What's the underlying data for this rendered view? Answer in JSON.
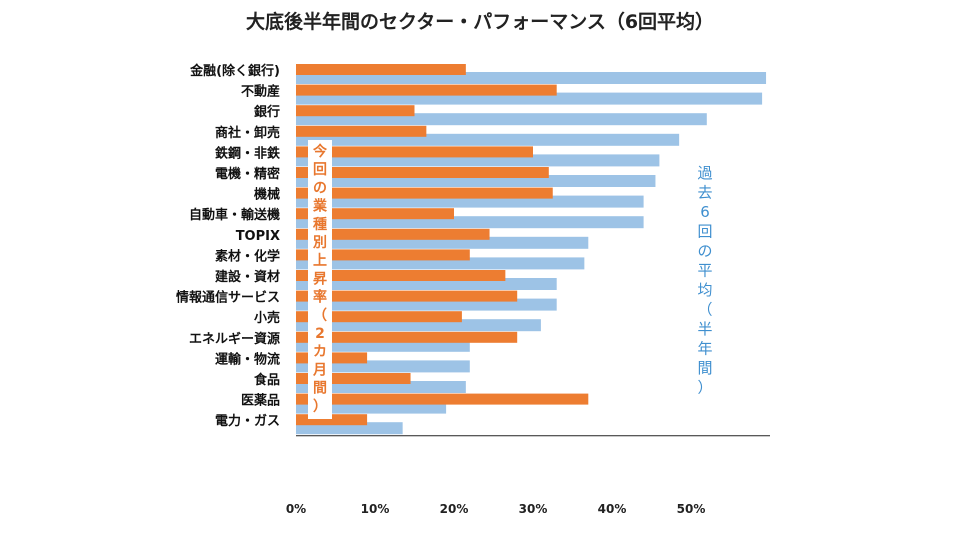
{
  "chart_data": {
    "type": "bar",
    "orientation": "horizontal",
    "title": "大底後半年間のセクター・パフォーマンス（6回平均）",
    "categories": [
      "金融(除く銀行)",
      "不動産",
      "銀行",
      "商社・卸売",
      "鉄鋼・非鉄",
      "電機・精密",
      "機械",
      "自動車・輸送機",
      "TOPIX",
      "素材・化学",
      "建設・資材",
      "情報通信サービス",
      "小売",
      "エネルギー資源",
      "運輸・物流",
      "食品",
      "医薬品",
      "電力・ガス"
    ],
    "series": [
      {
        "name": "今回の業種別上昇率（2カ月間）",
        "color": "#ed7d31",
        "values": [
          21.5,
          33,
          15,
          16.5,
          30,
          32,
          32.5,
          20,
          24.5,
          22,
          26.5,
          28,
          21,
          28,
          9,
          14.5,
          37,
          9
        ]
      },
      {
        "name": "過去6回の平均（半年間）",
        "color": "#9dc3e6",
        "values": [
          59.5,
          59,
          52,
          48.5,
          46,
          45.5,
          44,
          44,
          37,
          36.5,
          33,
          33,
          31,
          22,
          22,
          21.5,
          19,
          13.5
        ]
      }
    ],
    "xlim": [
      0,
      60
    ],
    "xticks": [
      0,
      10,
      20,
      30,
      40,
      50
    ],
    "xtick_labels": [
      "0%",
      "10%",
      "20%",
      "30%",
      "40%",
      "50%"
    ],
    "annotations": {
      "orange_label": "今回の業種別上昇率（2カ月間）",
      "blue_label": "過去6回の平均（半年間）"
    }
  }
}
